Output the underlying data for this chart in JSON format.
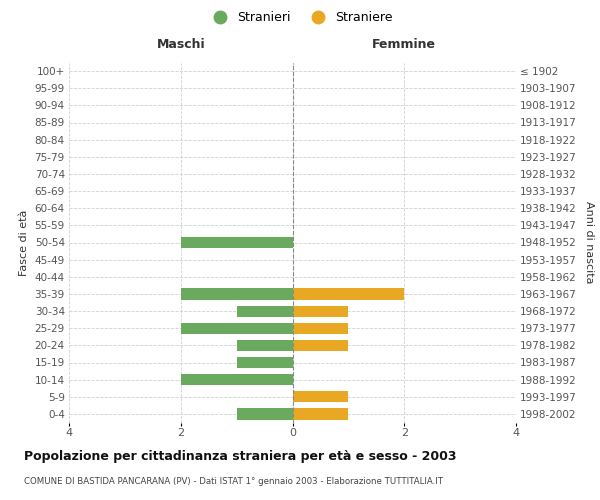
{
  "age_groups_bottom_to_top": [
    "0-4",
    "5-9",
    "10-14",
    "15-19",
    "20-24",
    "25-29",
    "30-34",
    "35-39",
    "40-44",
    "45-49",
    "50-54",
    "55-59",
    "60-64",
    "65-69",
    "70-74",
    "75-79",
    "80-84",
    "85-89",
    "90-94",
    "95-99",
    "100+"
  ],
  "birth_years_bottom_to_top": [
    "1998-2002",
    "1993-1997",
    "1988-1992",
    "1983-1987",
    "1978-1982",
    "1973-1977",
    "1968-1972",
    "1963-1967",
    "1958-1962",
    "1953-1957",
    "1948-1952",
    "1943-1947",
    "1938-1942",
    "1933-1937",
    "1928-1932",
    "1923-1927",
    "1918-1922",
    "1913-1917",
    "1908-1912",
    "1903-1907",
    "≤ 1902"
  ],
  "males_bottom_to_top": [
    1,
    0,
    2,
    1,
    1,
    2,
    1,
    2,
    0,
    0,
    2,
    0,
    0,
    0,
    0,
    0,
    0,
    0,
    0,
    0,
    0
  ],
  "females_bottom_to_top": [
    1,
    1,
    0,
    0,
    1,
    1,
    1,
    2,
    0,
    0,
    0,
    0,
    0,
    0,
    0,
    0,
    0,
    0,
    0,
    0,
    0
  ],
  "male_color": "#6aaa5e",
  "female_color": "#e8a824",
  "title": "Popolazione per cittadinanza straniera per età e sesso - 2003",
  "subtitle": "COMUNE DI BASTIDA PANCARANA (PV) - Dati ISTAT 1° gennaio 2003 - Elaborazione TUTTITALIA.IT",
  "label_maschi": "Maschi",
  "label_femmine": "Femmine",
  "ylabel_left": "Fasce di età",
  "ylabel_right": "Anni di nascita",
  "legend_males": "Stranieri",
  "legend_females": "Straniere",
  "xlim": 4,
  "background_color": "#ffffff",
  "grid_color": "#cccccc"
}
